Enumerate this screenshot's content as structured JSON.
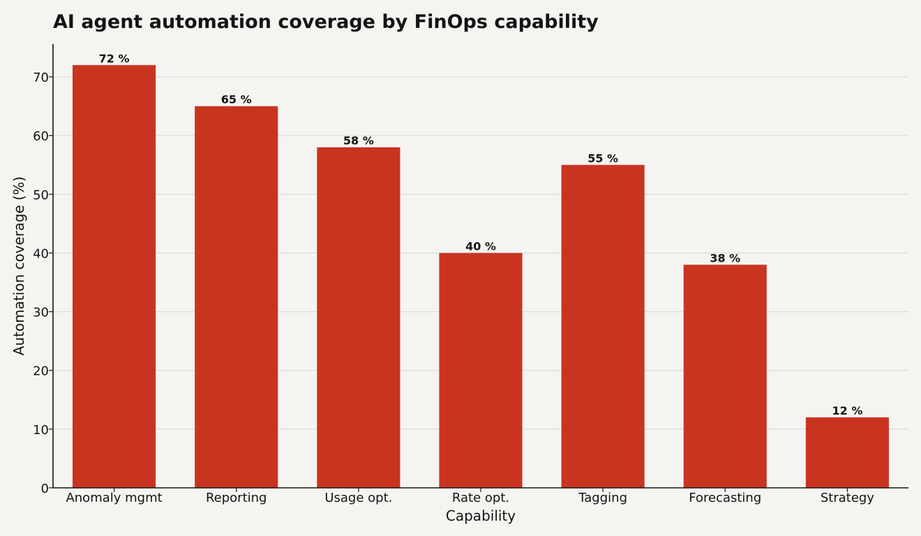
{
  "chart_data": {
    "type": "bar",
    "title": "AI agent automation coverage by FinOps capability",
    "xlabel": "Capability",
    "ylabel": "Automation coverage (%)",
    "categories": [
      "Anomaly mgmt",
      "Reporting",
      "Usage opt.",
      "Rate opt.",
      "Tagging",
      "Forecasting",
      "Strategy"
    ],
    "values": [
      72,
      65,
      58,
      40,
      55,
      38,
      12
    ],
    "value_labels": [
      "72 %",
      "65 %",
      "58 %",
      "40 %",
      "55 %",
      "38 %",
      "12 %"
    ],
    "yticks": [
      0,
      10,
      20,
      30,
      40,
      50,
      60,
      70
    ],
    "ylim": [
      0,
      75.6
    ],
    "grid": "horizontal",
    "legend": "none",
    "colors": {
      "bar": "#c93421",
      "background": "#f5f4f1",
      "grid": "#dcdcda",
      "text": "#141414"
    }
  }
}
